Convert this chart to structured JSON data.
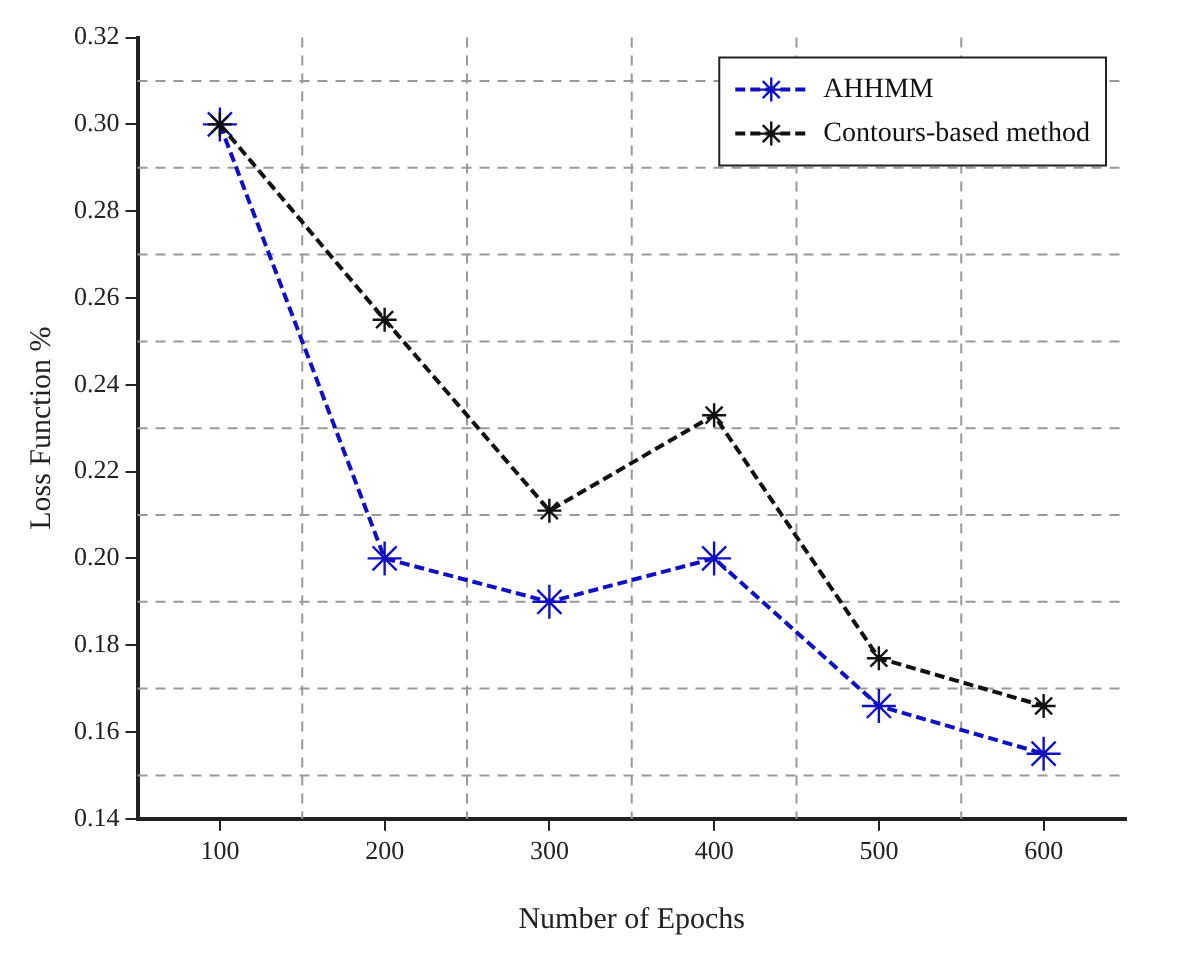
{
  "chart_data": {
    "type": "line",
    "xlabel": "Number of Epochs",
    "ylabel": "Loss Function %",
    "x": [
      100,
      200,
      300,
      400,
      500,
      600
    ],
    "series": [
      {
        "name": "AHHMM",
        "color": "#1010c0",
        "values": [
          0.3,
          0.2,
          0.19,
          0.2,
          0.166,
          0.155
        ]
      },
      {
        "name": "Contours-based method",
        "color": "#111111",
        "values": [
          0.3,
          0.255,
          0.211,
          0.233,
          0.177,
          0.166
        ]
      }
    ],
    "xlim": [
      50,
      650
    ],
    "xticks": [
      100,
      200,
      300,
      400,
      500,
      600
    ],
    "ylim": [
      0.14,
      0.32
    ],
    "yticks": [
      0.14,
      0.16,
      0.18,
      {
        "value": 0.2,
        "label": "0.20"
      },
      0.22,
      0.24,
      0.26,
      0.28,
      {
        "value": 0.3,
        "label": "0.30"
      },
      0.32
    ],
    "grid": true,
    "legend": "top right",
    "marker": "cross",
    "line_style": "dashed"
  }
}
